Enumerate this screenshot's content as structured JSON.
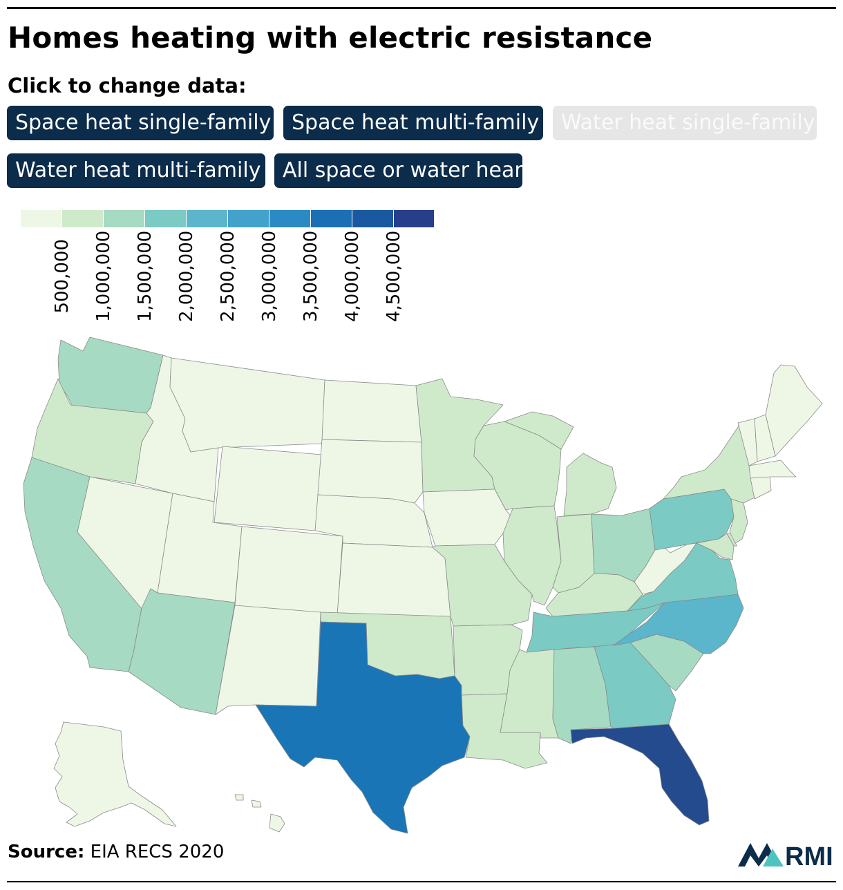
{
  "header": {
    "title": "Homes heating with electric resistance",
    "subtitle": "Click to change data:"
  },
  "buttons": [
    {
      "label": "Space heat single-family",
      "active": true
    },
    {
      "label": "Space heat multi-family",
      "active": true
    },
    {
      "label": "Water heat single-family",
      "active": false
    },
    {
      "label": "Water heat multi-family",
      "active": true
    },
    {
      "label": "All space or water hear",
      "active": true
    }
  ],
  "legend": {
    "colors": [
      "#eef7e6",
      "#cfeacb",
      "#a6dac2",
      "#7bcac4",
      "#5bb5cb",
      "#43a2cb",
      "#2b8ac3",
      "#1a6fb5",
      "#1a59a1",
      "#273f8a"
    ],
    "ticks": [
      "500,000",
      "1,000,000",
      "1,500,000",
      "2,000,000",
      "2,500,000",
      "3,000,000",
      "3,500,000",
      "4,000,000",
      "4,500,000"
    ]
  },
  "map_colors": {
    "lightest": "#eef7e6",
    "light": "#cfeacb",
    "mid_light": "#a6dac2",
    "mid": "#7bcac4",
    "mid_blue": "#5bb5cb",
    "texas": "#1a75b6",
    "florida": "#244b8d"
  },
  "source": {
    "label": "Source:",
    "text": "EIA RECS 2020"
  },
  "logo": {
    "text": "RMI"
  }
}
